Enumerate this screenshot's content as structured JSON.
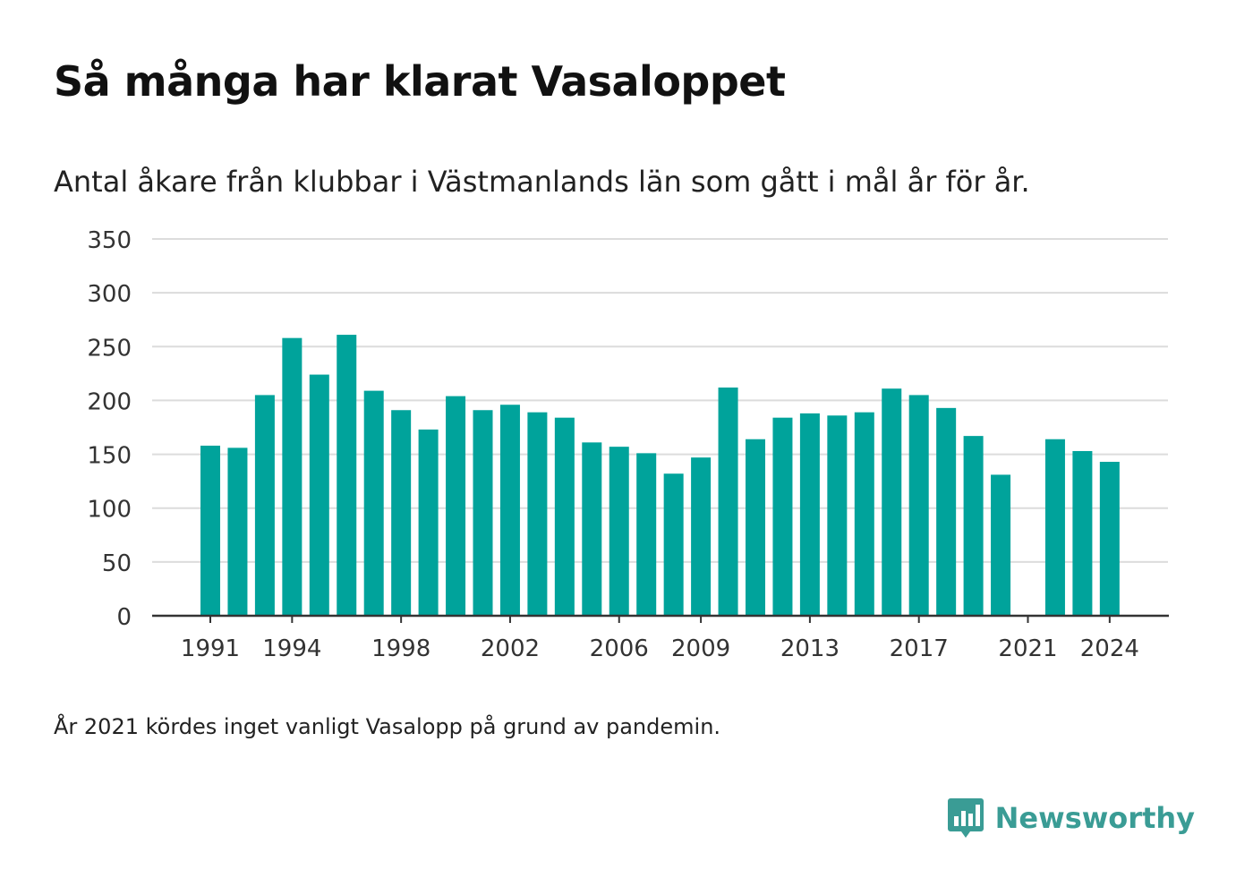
{
  "header": {
    "title": "Så många har klarat Vasaloppet",
    "subtitle": "Antal åkare från klubbar i Västmanlands län som gått i mål år för år."
  },
  "footer": {
    "note": "År 2021 kördes inget vanligt Vasalopp på grund av pandemin.",
    "brand": "Newsworthy",
    "brand_icon": "newsworthy-logo-icon"
  },
  "colors": {
    "bar": "#00a39b",
    "grid": "#dcdcdc",
    "axis": "#333333",
    "text": "#333333",
    "brand": "#3a9c95"
  },
  "chart_data": {
    "type": "bar",
    "title": "Så många har klarat Vasaloppet",
    "subtitle": "Antal åkare från klubbar i Västmanlands län som gått i mål år för år.",
    "xlabel": "",
    "ylabel": "",
    "ylim": [
      0,
      350
    ],
    "yticks": [
      0,
      50,
      100,
      150,
      200,
      250,
      300,
      350
    ],
    "xticks": [
      1991,
      1994,
      1998,
      2002,
      2006,
      2009,
      2013,
      2017,
      2021,
      2024
    ],
    "grid": true,
    "legend": "none",
    "categories": [
      1991,
      1992,
      1993,
      1994,
      1995,
      1996,
      1997,
      1998,
      1999,
      2000,
      2001,
      2002,
      2003,
      2004,
      2005,
      2006,
      2007,
      2008,
      2009,
      2010,
      2011,
      2012,
      2013,
      2014,
      2015,
      2016,
      2017,
      2018,
      2019,
      2020,
      2021,
      2022,
      2023,
      2024
    ],
    "values": [
      158,
      156,
      205,
      258,
      224,
      261,
      209,
      191,
      173,
      204,
      191,
      196,
      189,
      184,
      161,
      157,
      151,
      132,
      147,
      212,
      164,
      184,
      188,
      186,
      189,
      211,
      205,
      193,
      167,
      131,
      null,
      164,
      153,
      143
    ]
  }
}
